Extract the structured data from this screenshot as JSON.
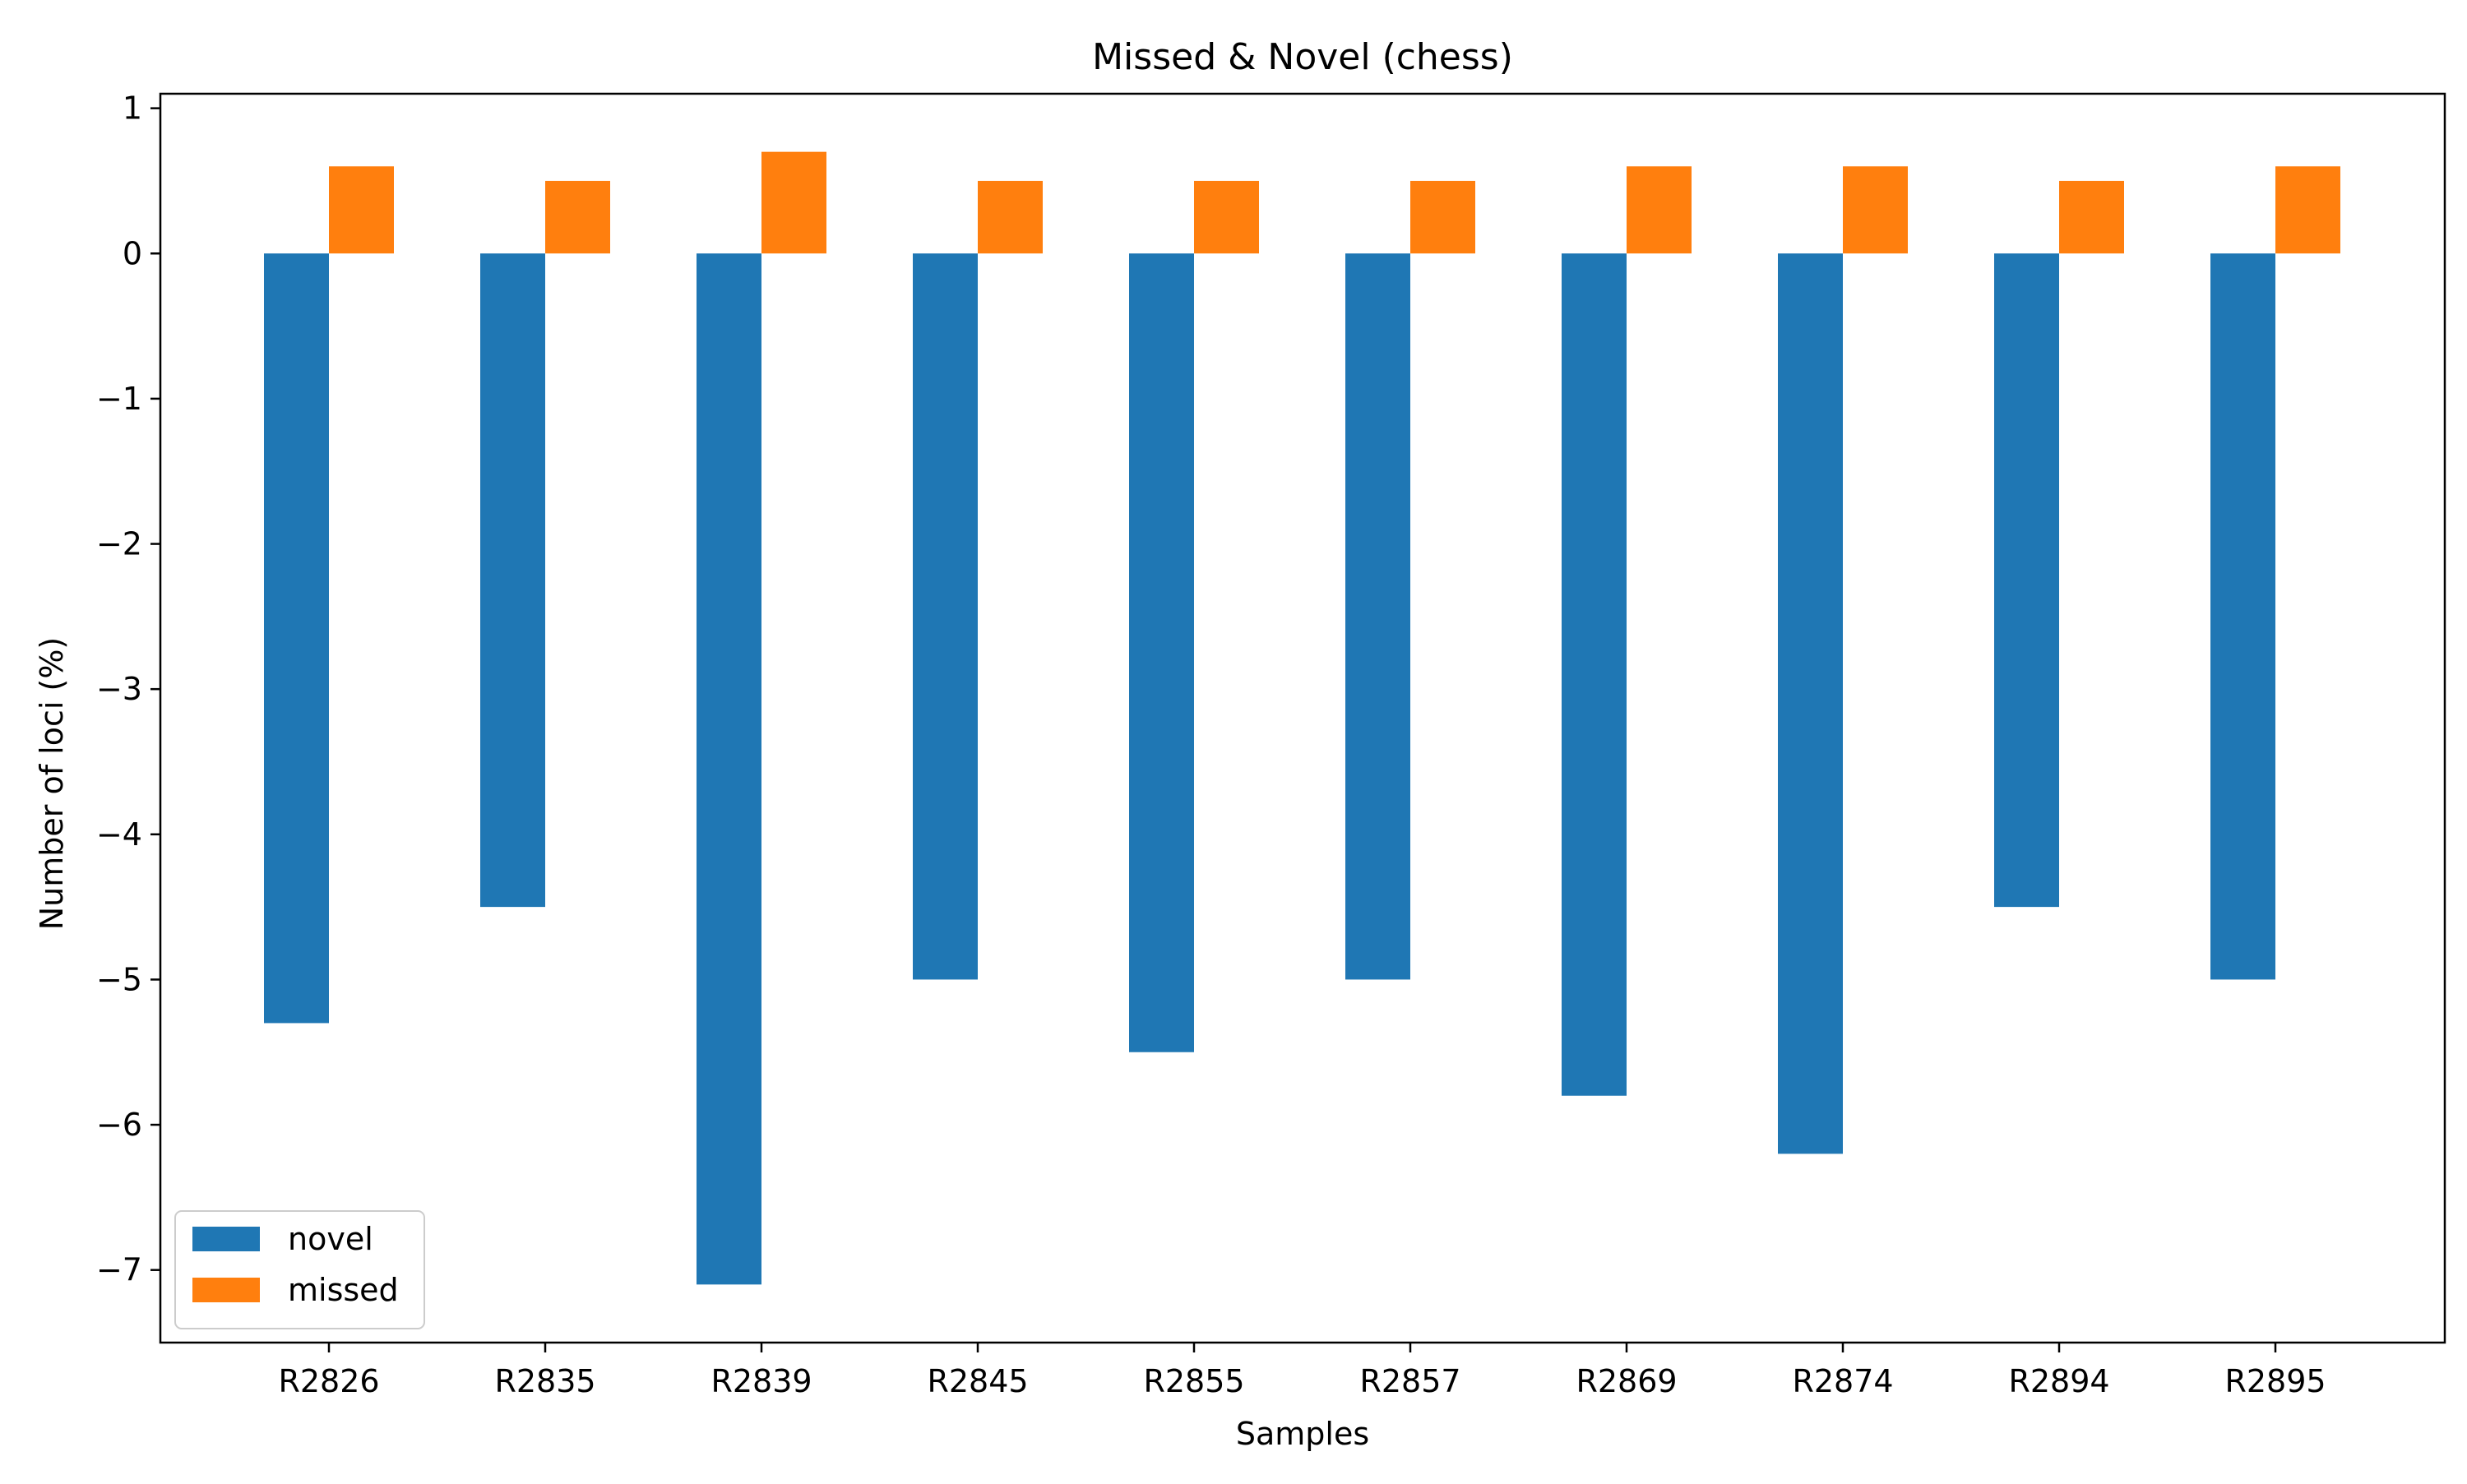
{
  "chart_data": {
    "type": "bar",
    "title": "Missed & Novel (chess)",
    "xlabel": "Samples",
    "ylabel": "Number of loci (%)",
    "categories": [
      "R2826",
      "R2835",
      "R2839",
      "R2845",
      "R2855",
      "R2857",
      "R2869",
      "R2874",
      "R2894",
      "R2895"
    ],
    "series": [
      {
        "name": "novel",
        "color": "#1f77b4",
        "values": [
          -5.3,
          -4.5,
          -7.1,
          -5.0,
          -5.5,
          -5.0,
          -5.8,
          -6.2,
          -4.5,
          -5.0
        ]
      },
      {
        "name": "missed",
        "color": "#ff7f0e",
        "values": [
          0.6,
          0.5,
          0.7,
          0.5,
          0.5,
          0.5,
          0.6,
          0.6,
          0.5,
          0.6
        ]
      }
    ],
    "ylim": [
      -7.5,
      1.1
    ],
    "yticks": [
      1,
      0,
      -1,
      -2,
      -3,
      -4,
      -5,
      -6,
      -7
    ],
    "ytick_labels": [
      "1",
      "0",
      "−1",
      "−2",
      "−3",
      "−4",
      "−5",
      "−6",
      "−7"
    ],
    "grid": false,
    "legend": "lower-left"
  }
}
